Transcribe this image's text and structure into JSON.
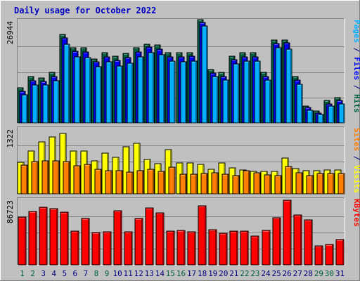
{
  "title": "Daily usage for October 2022",
  "colors": {
    "frame": "#c0c0c0",
    "title": "#0000c0",
    "hits": "#006040",
    "files": "#0000ff",
    "pages": "#00b0ff",
    "visits": "#ffff00",
    "sites": "#ff8000",
    "kbytes": "#ff0000",
    "weekend_day": "#006040",
    "weekday": "#000080",
    "gridline": "#808080"
  },
  "chart_data": [
    {
      "type": "bar",
      "name": "hits-files-pages",
      "y_max_label": "26944",
      "ylim": [
        0,
        26944
      ],
      "axis_label_parts": [
        {
          "text": "Pages",
          "color_key": "pages"
        },
        {
          "text": " / ",
          "color_key": "weekday"
        },
        {
          "text": "Files",
          "color_key": "files"
        },
        {
          "text": " / ",
          "color_key": "weekday"
        },
        {
          "text": "Hits",
          "color_key": "hits"
        }
      ],
      "series": [
        {
          "name": "Hits",
          "color_key": "hits",
          "values": [
            9300,
            12200,
            11900,
            13300,
            23500,
            19900,
            19900,
            17000,
            18500,
            17700,
            18400,
            19900,
            20900,
            20600,
            18500,
            18500,
            18500,
            27300,
            14200,
            13300,
            17700,
            18500,
            18500,
            13300,
            22000,
            22000,
            12300,
            4500,
            3200,
            5900,
            6700
          ]
        },
        {
          "name": "Files",
          "color_key": "files",
          "values": [
            8300,
            11100,
            10900,
            12300,
            22500,
            18900,
            18700,
            16100,
            17500,
            16600,
            17300,
            18800,
            20000,
            19500,
            17500,
            17500,
            17600,
            26500,
            13200,
            12200,
            16800,
            17500,
            17500,
            12200,
            21000,
            21100,
            11300,
            4000,
            2600,
            5100,
            5900
          ]
        },
        {
          "name": "Pages",
          "color_key": "pages",
          "values": [
            7500,
            10100,
            10000,
            11100,
            20800,
            17500,
            17300,
            14800,
            16100,
            15100,
            15800,
            17500,
            18500,
            18100,
            16300,
            16100,
            16300,
            25600,
            12200,
            11300,
            15600,
            16300,
            16300,
            11300,
            19800,
            19600,
            10300,
            3400,
            2200,
            4500,
            5100
          ]
        }
      ]
    },
    {
      "type": "bar",
      "name": "visits-sites",
      "y_max_label": "1322",
      "ylim": [
        0,
        1322
      ],
      "axis_label_parts": [
        {
          "text": "Sites",
          "color_key": "sites"
        },
        {
          "text": " / ",
          "color_key": "weekday"
        },
        {
          "text": "Visits",
          "color_key": "visits"
        }
      ],
      "series": [
        {
          "name": "Visits",
          "color_key": "visits",
          "values": [
            640,
            880,
            1070,
            1160,
            1230,
            880,
            880,
            670,
            830,
            750,
            960,
            1040,
            700,
            620,
            900,
            630,
            630,
            610,
            500,
            630,
            530,
            490,
            460,
            460,
            460,
            730,
            520,
            470,
            480,
            490,
            490
          ]
        },
        {
          "name": "Sites",
          "color_key": "sites",
          "values": [
            590,
            660,
            680,
            670,
            660,
            570,
            600,
            500,
            480,
            480,
            450,
            480,
            500,
            460,
            550,
            400,
            400,
            410,
            430,
            400,
            380,
            470,
            430,
            390,
            380,
            560,
            430,
            380,
            410,
            410,
            420
          ]
        }
      ]
    },
    {
      "type": "bar",
      "name": "kbytes",
      "y_max_label": "86723",
      "ylim": [
        0,
        86723
      ],
      "axis_label_parts": [
        {
          "text": "KBytes",
          "color_key": "kbytes"
        }
      ],
      "series": [
        {
          "name": "KBytes",
          "color_key": "kbytes",
          "values": [
            64000,
            72000,
            77000,
            75000,
            71000,
            45000,
            62000,
            43000,
            44000,
            73000,
            44000,
            62000,
            76000,
            70000,
            45000,
            46000,
            44000,
            79000,
            47000,
            42000,
            45000,
            45000,
            39000,
            46000,
            63000,
            86700,
            67000,
            60000,
            25000,
            27000,
            34000
          ]
        }
      ]
    }
  ],
  "days": [
    "1",
    "2",
    "3",
    "4",
    "5",
    "6",
    "7",
    "8",
    "9",
    "10",
    "11",
    "12",
    "13",
    "14",
    "15",
    "16",
    "17",
    "18",
    "19",
    "20",
    "21",
    "22",
    "23",
    "24",
    "25",
    "26",
    "27",
    "28",
    "29",
    "30",
    "31"
  ],
  "weekend_days": [
    "1",
    "2",
    "8",
    "9",
    "15",
    "16",
    "22",
    "23",
    "29",
    "30"
  ]
}
